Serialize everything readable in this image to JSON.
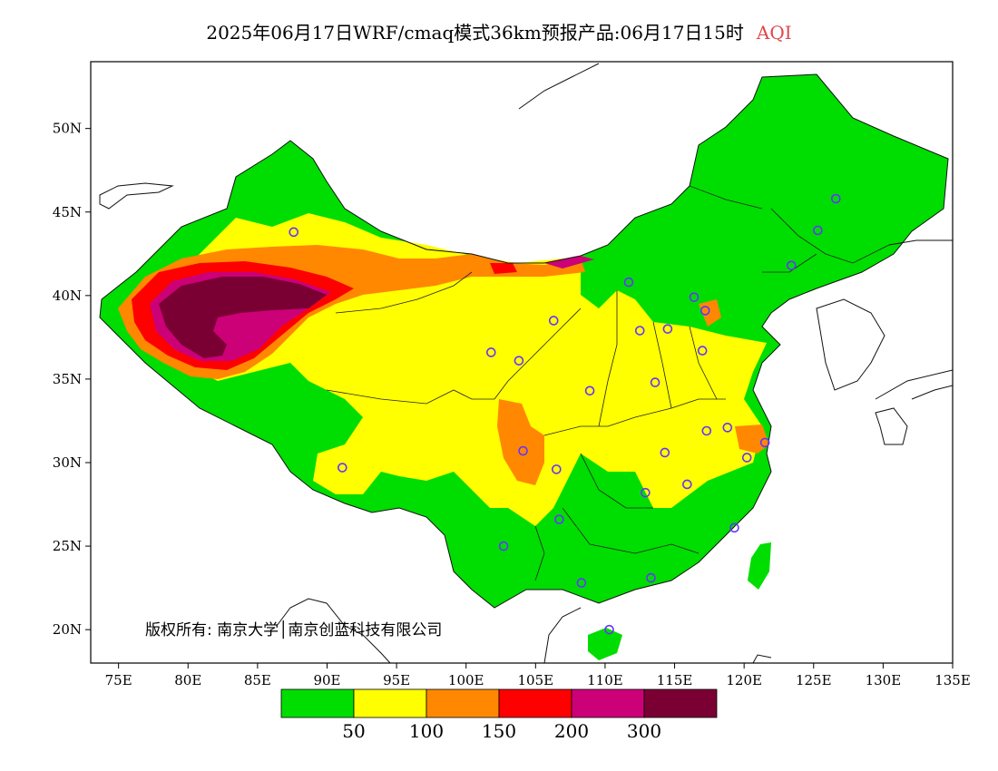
{
  "title": {
    "text": "2025年06月17日WRF/cmaq模式36km预报产品:06月17日15时",
    "tag": "AQI",
    "tag_color": "#e0474c"
  },
  "copyright": "版权所有: 南京大学│南京创蓝科技有限公司",
  "axes": {
    "lat_labels": [
      "50N",
      "45N",
      "40N",
      "35N",
      "30N",
      "25N",
      "20N"
    ],
    "lat_values": [
      50,
      45,
      40,
      35,
      30,
      25,
      20
    ],
    "lon_labels": [
      "75E",
      "80E",
      "85E",
      "90E",
      "95E",
      "100E",
      "105E",
      "110E",
      "115E",
      "120E",
      "125E",
      "130E",
      "135E"
    ],
    "lon_values": [
      75,
      80,
      85,
      90,
      95,
      100,
      105,
      110,
      115,
      120,
      125,
      130,
      135
    ],
    "lon_range": [
      73,
      135
    ],
    "lat_range": [
      18,
      54
    ]
  },
  "legend": {
    "colors": [
      "#00dd00",
      "#ffff00",
      "#ff8800",
      "#ff0000",
      "#cc0077",
      "#7a0033"
    ],
    "labels": [
      "50",
      "100",
      "150",
      "200",
      "300"
    ]
  },
  "stations": [
    {
      "lon": 87.6,
      "lat": 43.8
    },
    {
      "lon": 101.8,
      "lat": 36.6
    },
    {
      "lon": 103.8,
      "lat": 36.1
    },
    {
      "lon": 106.3,
      "lat": 38.5
    },
    {
      "lon": 111.7,
      "lat": 40.8
    },
    {
      "lon": 116.4,
      "lat": 39.9
    },
    {
      "lon": 117.2,
      "lat": 39.1
    },
    {
      "lon": 112.5,
      "lat": 37.9
    },
    {
      "lon": 114.5,
      "lat": 38.0
    },
    {
      "lon": 117.0,
      "lat": 36.7
    },
    {
      "lon": 113.6,
      "lat": 34.8
    },
    {
      "lon": 108.9,
      "lat": 34.3
    },
    {
      "lon": 123.4,
      "lat": 41.8
    },
    {
      "lon": 125.3,
      "lat": 43.9
    },
    {
      "lon": 126.6,
      "lat": 45.8
    },
    {
      "lon": 91.1,
      "lat": 29.7
    },
    {
      "lon": 104.1,
      "lat": 30.7
    },
    {
      "lon": 106.5,
      "lat": 29.6
    },
    {
      "lon": 106.7,
      "lat": 26.6
    },
    {
      "lon": 102.7,
      "lat": 25.0
    },
    {
      "lon": 108.3,
      "lat": 22.8
    },
    {
      "lon": 113.3,
      "lat": 23.1
    },
    {
      "lon": 110.3,
      "lat": 20.0
    },
    {
      "lon": 112.9,
      "lat": 28.2
    },
    {
      "lon": 114.3,
      "lat": 30.6
    },
    {
      "lon": 115.9,
      "lat": 28.7
    },
    {
      "lon": 117.3,
      "lat": 31.9
    },
    {
      "lon": 118.8,
      "lat": 32.1
    },
    {
      "lon": 120.2,
      "lat": 30.3
    },
    {
      "lon": 121.5,
      "lat": 31.2
    },
    {
      "lon": 119.3,
      "lat": 26.1
    }
  ]
}
